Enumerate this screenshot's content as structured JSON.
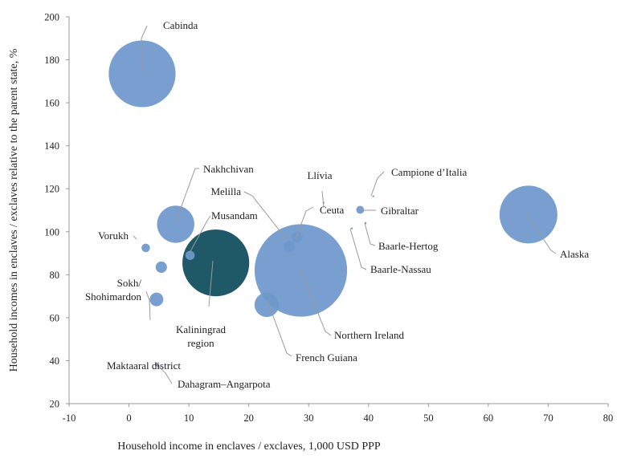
{
  "chart_data": {
    "type": "bubble",
    "xlabel": "Household income in enclaves / exclaves, 1,000 USD PPP",
    "ylabel": "Household incomes in enclaves / exclaves relative to the parent state, %",
    "xlim": [
      -10,
      80
    ],
    "ylim": [
      20,
      200
    ],
    "xticks": [
      "-10",
      "0",
      "10",
      "20",
      "30",
      "40",
      "50",
      "60",
      "70",
      "80"
    ],
    "yticks": [
      "20",
      "40",
      "60",
      "80",
      "100",
      "120",
      "140",
      "160",
      "180",
      "200"
    ],
    "grid": false,
    "legend": "none",
    "colors": {
      "bubble": "#6f98cc",
      "highlight": "#1f5866",
      "axis": "#9a9a9a",
      "leader": "#9a9a9a"
    },
    "points": [
      {
        "name": "Cabinda",
        "x": 2.2,
        "y": 173.5,
        "size": 26
      },
      {
        "name": "Nakhchivan",
        "x": 7.8,
        "y": 103.5,
        "size": 14.5
      },
      {
        "name": "Vorukh",
        "x": 2.8,
        "y": 92.5,
        "size": 3.3
      },
      {
        "name": "Musandam",
        "x": 10.2,
        "y": 89,
        "size": 3.6
      },
      {
        "name": "",
        "x": 5.4,
        "y": 83.5,
        "size": 4.4
      },
      {
        "name": "Sokh/\nShohimardon",
        "x": 4.6,
        "y": 68.5,
        "size": 5.3
      },
      {
        "name": "Kaliningrad\nregion",
        "x": 14.5,
        "y": 85.5,
        "size": 26,
        "highlight": true
      },
      {
        "name": "Maktaaral district",
        "x": 4.6,
        "y": 38.2,
        "size": 1.3
      },
      {
        "name": "Dahagram–Angarpota",
        "x": 4.9,
        "y": 37.5,
        "size": 0.9
      },
      {
        "name": "Melilla",
        "x": 26.8,
        "y": 93.2,
        "size": 4.4
      },
      {
        "name": "Ceuta",
        "x": 28.1,
        "y": 97.5,
        "size": 4.2
      },
      {
        "name": "Northern Ireland",
        "x": 28.7,
        "y": 82,
        "size": 36
      },
      {
        "name": "French Guiana",
        "x": 23,
        "y": 66,
        "size": 9.5
      },
      {
        "name": "Llívia",
        "x": 32.5,
        "y": 113.5,
        "size": 0.7
      },
      {
        "name": "Gibraltar",
        "x": 38.6,
        "y": 110.2,
        "size": 3.1
      },
      {
        "name": "Campione d’Italia",
        "x": 40.8,
        "y": 116.5,
        "size": 0.7
      },
      {
        "name": "Baarle-Hertog",
        "x": 39.5,
        "y": 104,
        "size": 0.8
      },
      {
        "name": "Baarle-Nassau",
        "x": 37.2,
        "y": 101.5,
        "size": 0.6
      },
      {
        "name": "Alaska",
        "x": 66.7,
        "y": 108,
        "size": 22.5
      }
    ]
  }
}
